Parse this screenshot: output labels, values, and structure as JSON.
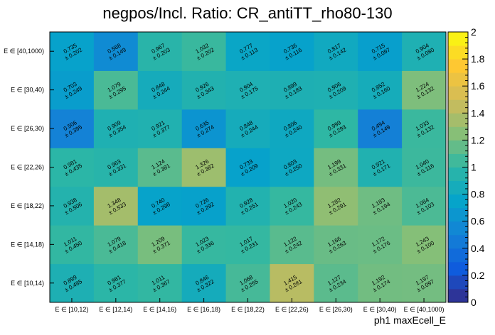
{
  "chart_data": {
    "type": "heatmap",
    "title": "negpos/Incl. Ratio: CR_antiTT_rho80-130",
    "xlabel": "ph1 maxEcell_E",
    "ylabel": "",
    "x_categories": [
      "E ∈ [10,12)",
      "E ∈ [12,14)",
      "E ∈ [14,16)",
      "E ∈ [16,18)",
      "E ∈ [18,22)",
      "E ∈ [22,26)",
      "E ∈ [26,30)",
      "E ∈ [30,40)",
      "E ∈ [40,1000)"
    ],
    "y_categories": [
      "E ∈ [10,14)",
      "E ∈ [14,18)",
      "E ∈ [18,22)",
      "E ∈ [22,26)",
      "E ∈ [26,30)",
      "E ∈ [30,40)",
      "E ∈ [40,1000)"
    ],
    "values": [
      [
        0.899,
        0.981,
        1.011,
        0.846,
        1.068,
        1.415,
        1.127,
        1.192,
        1.197
      ],
      [
        1.011,
        1.079,
        1.209,
        1.023,
        1.017,
        1.122,
        1.166,
        1.172,
        1.243
      ],
      [
        0.938,
        1.348,
        0.74,
        0.726,
        0.928,
        1.02,
        1.282,
        1.183,
        1.084
      ],
      [
        0.981,
        0.963,
        1.124,
        1.326,
        0.733,
        0.803,
        1.199,
        0.921,
        1.04
      ],
      [
        0.506,
        0.909,
        0.921,
        0.635,
        0.848,
        0.806,
        0.999,
        0.494,
        1.033
      ],
      [
        0.703,
        1.079,
        0.848,
        0.926,
        0.904,
        0.899,
        0.906,
        0.852,
        1.224
      ],
      [
        0.735,
        0.568,
        0.967,
        1.032,
        0.777,
        0.736,
        0.817,
        0.715,
        0.904
      ]
    ],
    "errors": [
      [
        0.485,
        0.377,
        0.367,
        0.322,
        0.255,
        0.281,
        0.234,
        0.174,
        0.097
      ],
      [
        0.45,
        0.418,
        0.371,
        0.336,
        0.231,
        0.242,
        0.263,
        0.176,
        0.1
      ],
      [
        0.506,
        0.533,
        0.298,
        0.292,
        0.251,
        0.243,
        0.291,
        0.194,
        0.103
      ],
      [
        0.435,
        0.331,
        0.381,
        0.382,
        0.209,
        0.25,
        0.331,
        0.171,
        0.116
      ],
      [
        0.395,
        0.354,
        0.377,
        0.274,
        0.244,
        0.24,
        0.293,
        0.149,
        0.132
      ],
      [
        0.249,
        0.295,
        0.244,
        0.343,
        0.175,
        0.183,
        0.209,
        0.16,
        0.132
      ],
      [
        0.202,
        0.149,
        0.203,
        0.202,
        0.113,
        0.116,
        0.142,
        0.097,
        0.08
      ]
    ],
    "zlim": [
      0,
      2
    ],
    "colorbar_ticks": [
      "0",
      "0.2",
      "0.4",
      "0.6",
      "0.8",
      "1",
      "1.2",
      "1.4",
      "1.6",
      "1.8",
      "2"
    ],
    "colormap": [
      "#352a87",
      "#0f5cdd",
      "#1481d6",
      "#06a4ca",
      "#2eb7a4",
      "#87bf77",
      "#d1bb59",
      "#fec832",
      "#f9fb0e"
    ]
  }
}
